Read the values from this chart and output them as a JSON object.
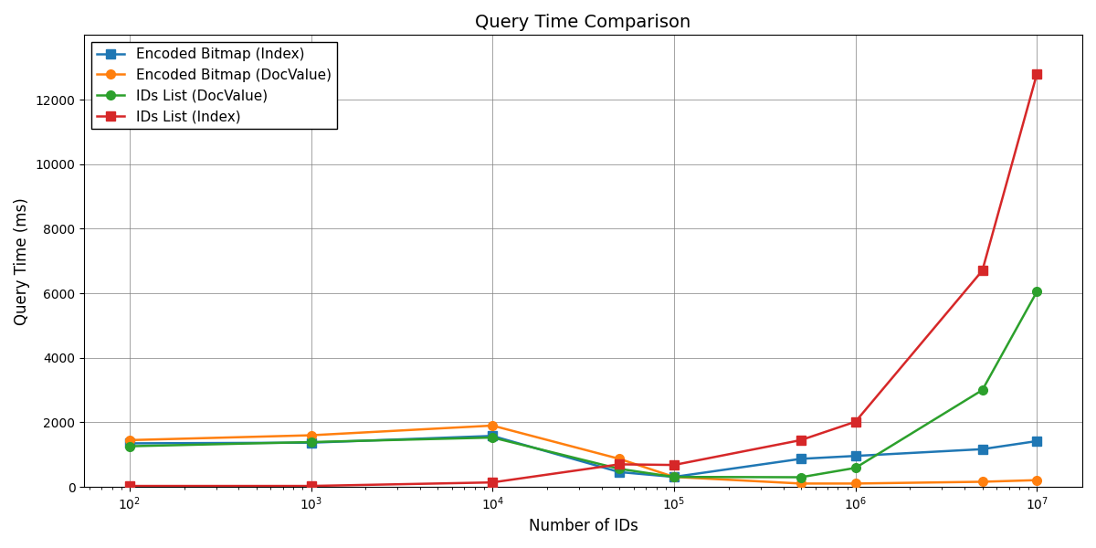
{
  "title": "Query Time Comparison",
  "xlabel": "Number of IDs",
  "ylabel": "Query Time (ms)",
  "x_values": [
    100,
    1000,
    10000,
    50000,
    100000,
    500000,
    1000000,
    5000000,
    10000000
  ],
  "series": {
    "Encoded Bitmap (Index)": {
      "y": [
        1350,
        1370,
        1580,
        460,
        310,
        870,
        960,
        1170,
        1420
      ],
      "color": "#1f77b4",
      "marker": "s",
      "markersize": 7,
      "linewidth": 1.8
    },
    "Encoded Bitmap (DocValue)": {
      "y": [
        1450,
        1600,
        1900,
        870,
        310,
        105,
        105,
        160,
        210
      ],
      "color": "#ff7f0e",
      "marker": "o",
      "markersize": 7,
      "linewidth": 1.8
    },
    "IDs List (DocValue)": {
      "y": [
        1260,
        1390,
        1530,
        560,
        310,
        300,
        590,
        3000,
        6050
      ],
      "color": "#2ca02c",
      "marker": "o",
      "markersize": 7,
      "linewidth": 1.8
    },
    "IDs List (Index)": {
      "y": [
        30,
        30,
        140,
        700,
        680,
        1450,
        2020,
        6700,
        12800
      ],
      "color": "#d62728",
      "marker": "s",
      "markersize": 7,
      "linewidth": 1.8
    }
  },
  "ylim": [
    0,
    14000
  ],
  "yticks": [
    0,
    2000,
    4000,
    6000,
    8000,
    10000,
    12000
  ],
  "xticks": [
    100,
    1000,
    10000,
    100000,
    1000000,
    10000000
  ],
  "grid": true,
  "legend_loc": "upper left",
  "legend_fontsize": 11,
  "title_fontsize": 14,
  "label_fontsize": 12,
  "tick_fontsize": 10,
  "figsize": [
    12,
    6
  ],
  "dpi": 100,
  "background_color": "white"
}
